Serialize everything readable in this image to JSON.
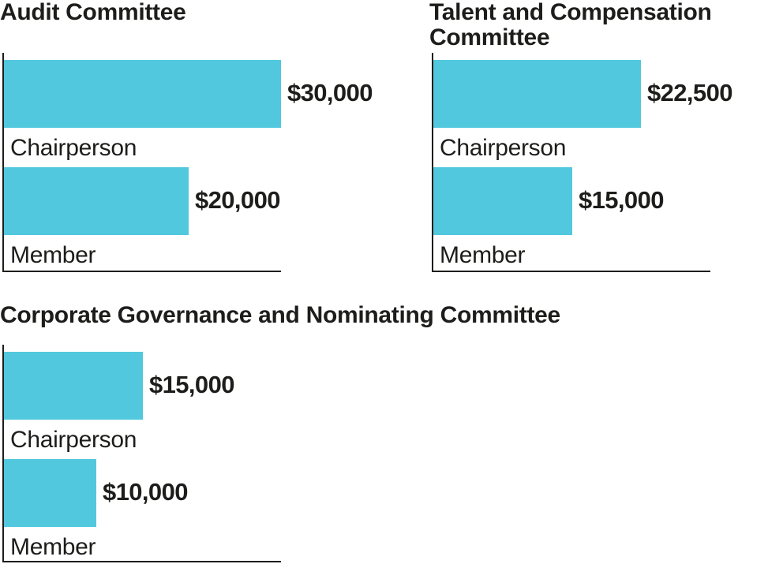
{
  "colors": {
    "bar": "#51c8dd",
    "text": "#1d1d1b"
  },
  "chart_data": [
    {
      "type": "bar",
      "orientation": "horizontal",
      "title": "Audit Committee",
      "categories": [
        "Chairperson",
        "Member"
      ],
      "values": [
        30000,
        20000
      ],
      "value_labels": [
        "$30,000",
        "$20,000"
      ],
      "xlim": [
        0,
        30000
      ]
    },
    {
      "type": "bar",
      "orientation": "horizontal",
      "title": "Talent and Compensation Committee",
      "categories": [
        "Chairperson",
        "Member"
      ],
      "values": [
        22500,
        15000
      ],
      "value_labels": [
        "$22,500",
        "$15,000"
      ],
      "xlim": [
        0,
        30000
      ]
    },
    {
      "type": "bar",
      "orientation": "horizontal",
      "title": "Corporate Governance and Nominating Committee",
      "categories": [
        "Chairperson",
        "Member"
      ],
      "values": [
        15000,
        10000
      ],
      "value_labels": [
        "$15,000",
        "$10,000"
      ],
      "xlim": [
        0,
        30000
      ]
    }
  ]
}
